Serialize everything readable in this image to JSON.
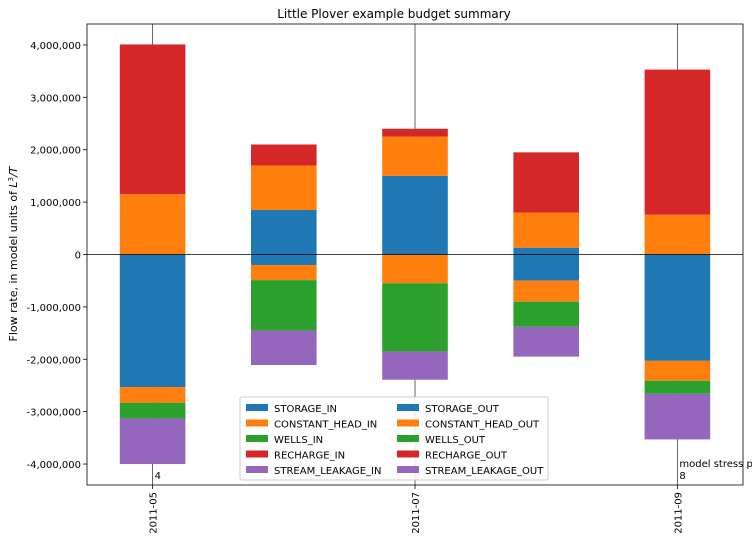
{
  "chart_data": {
    "type": "bar",
    "stacked": true,
    "title": "Little Plover example budget summary",
    "ylabel": "Flow rate, in model units of L³/T",
    "ylabel_main": "Flow rate, in model units of ",
    "ylabel_unit": "L",
    "ylabel_exp": "3",
    "ylabel_tail": "/T",
    "xlabel": "",
    "ylim": [
      -4400000,
      4400000
    ],
    "yticks": [
      -4000000,
      -3000000,
      -2000000,
      -1000000,
      0,
      1000000,
      2000000,
      3000000,
      4000000
    ],
    "ytick_labels": [
      "-4,000,000",
      "-3,000,000",
      "-2,000,000",
      "-1,000,000",
      "0",
      "1,000,000",
      "2,000,000",
      "3,000,000",
      "4,000,000"
    ],
    "categories": [
      "2011-05",
      "",
      "2011-07",
      "",
      "2011-09"
    ],
    "colors": {
      "storage": "#1f77b4",
      "constant_head": "#ff7f0e",
      "wells": "#2ca02c",
      "recharge": "#d62728",
      "stream_leakage": "#9467bd"
    },
    "series_in": [
      {
        "name": "STORAGE_IN",
        "color": "#1f77b4",
        "values": [
          0,
          850000,
          1500000,
          130000,
          0
        ]
      },
      {
        "name": "CONSTANT_HEAD_IN",
        "color": "#ff7f0e",
        "values": [
          1150000,
          850000,
          750000,
          670000,
          760000
        ]
      },
      {
        "name": "WELLS_IN",
        "color": "#2ca02c",
        "values": [
          0,
          0,
          0,
          0,
          0
        ]
      },
      {
        "name": "RECHARGE_IN",
        "color": "#d62728",
        "values": [
          2860000,
          400000,
          150000,
          1150000,
          2770000
        ]
      },
      {
        "name": "STREAM_LEAKAGE_IN",
        "color": "#9467bd",
        "values": [
          0,
          0,
          0,
          0,
          0
        ]
      }
    ],
    "series_out": [
      {
        "name": "STORAGE_OUT",
        "color": "#1f77b4",
        "values": [
          -2530000,
          -200000,
          0,
          -500000,
          -2030000
        ]
      },
      {
        "name": "CONSTANT_HEAD_OUT",
        "color": "#ff7f0e",
        "values": [
          -300000,
          -290000,
          -550000,
          -400000,
          -380000
        ]
      },
      {
        "name": "WELLS_OUT",
        "color": "#2ca02c",
        "values": [
          -300000,
          -960000,
          -1300000,
          -480000,
          -250000
        ]
      },
      {
        "name": "RECHARGE_OUT",
        "color": "#d62728",
        "values": [
          0,
          0,
          0,
          0,
          0
        ]
      },
      {
        "name": "STREAM_LEAKAGE_OUT",
        "color": "#9467bd",
        "values": [
          -870000,
          -660000,
          -540000,
          -570000,
          -870000
        ]
      }
    ],
    "legend_placement": "lower-center",
    "grid": false,
    "annotations": [
      {
        "text": "4",
        "category_index": 0
      },
      {
        "text": "model stress period:",
        "category_index": 4
      },
      {
        "text": "8",
        "category_index": 4
      }
    ]
  }
}
